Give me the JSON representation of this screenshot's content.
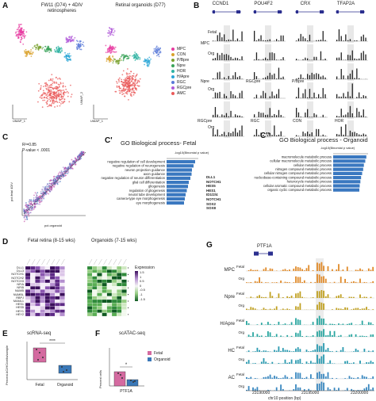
{
  "panels": {
    "A": {
      "letter": "A",
      "title_left_1": "FW11 (D74) + 4DIV",
      "title_left_2": "retinospheres",
      "title_right": "Retinal organoids (D77)",
      "umap1": "UMAP_1",
      "umap2": "UMAP_2",
      "legend": [
        {
          "label": "MPC",
          "color": "#e73aa0"
        },
        {
          "label": "CON",
          "color": "#d9a22b"
        },
        {
          "label": "P/Bpre",
          "color": "#7aa12f"
        },
        {
          "label": "Npre",
          "color": "#3aa35a"
        },
        {
          "label": "HOR",
          "color": "#2fb3a3"
        },
        {
          "label": "H/Apre",
          "color": "#2aa6d6"
        },
        {
          "label": "RGC",
          "color": "#5a79d8"
        },
        {
          "label": "RGCpre",
          "color": "#b05ad8"
        },
        {
          "label": "AMC",
          "color": "#ea5a5a"
        }
      ]
    },
    "B": {
      "letter": "B",
      "genes": [
        "CCND1",
        "POU4F2",
        "CRX",
        "TFAP2A"
      ],
      "rows": [
        {
          "label": "MPC"
        },
        {
          "label": "Npre"
        },
        {
          "label": "RGCpre"
        }
      ],
      "track_fetal": "Fetal",
      "track_org": "Org",
      "inner_labels": [
        "RGCpre",
        "P/Bpre",
        "RGC",
        "CON",
        "HOR"
      ]
    },
    "C": {
      "letter": "C",
      "r2": "R²=0.85",
      "pval": "P-value < .0001",
      "xlabel": "pct.organoid",
      "ylabel": "pct.fetal 4DIV"
    },
    "C1": {
      "letter": "C'",
      "title": "GO Biological process- Fetal",
      "axis": "-log10(Binomial p value)",
      "terms": [
        "negative regulation of cell development",
        "negative regulation of neurogenesis",
        "neuron projection guidance",
        "axon guidance",
        "negative regulation of neuron differentiation",
        "glial cell differentiation",
        "gliogenesis",
        "regulation of gliogenesis",
        "neural tube development",
        "camera-type eye morphogenesis",
        "eye morphogenesis"
      ],
      "values": [
        7.2,
        6.8,
        6.4,
        6.3,
        6.0,
        5.6,
        5.4,
        5.1,
        4.8,
        4.6,
        4.4
      ],
      "genes": [
        "DLL1",
        "NOTCH1",
        "HES5",
        "HES1",
        "ID1/2/4",
        "NOTCH1",
        "SOX2",
        "SOX8"
      ]
    },
    "C2": {
      "letter": "C''",
      "title": "GO Biological process - Organoid",
      "axis": "-log10(Binomial p value)",
      "terms": [
        "macromolecule metabolic process",
        "cellular macromolecule metabolic process",
        "cellular metabolic process",
        "nitrogen compound metabolic process",
        "cellular nitrogen compound metabolic process",
        "nucleobase-containing compound metabolic process",
        "heterocycle metabolic process",
        "cellular aromatic compound metabolic process",
        "organic cyclic compound metabolic process"
      ],
      "values": [
        9.5,
        9.2,
        8.8,
        8.6,
        8.3,
        8.0,
        7.8,
        7.6,
        7.5
      ]
    },
    "D": {
      "letter": "D",
      "title_fetal": "Fetal retina (8-15 wks)",
      "title_org": "Organoids (7-15 wks)",
      "genes": [
        "DLL1",
        "DLL3",
        "NOTCH1",
        "NOTCH2",
        "NOTCH3",
        "NFIA",
        "NFIB",
        "NUMB",
        "NUMBL",
        "RBPJ",
        "MAML1",
        "HES1",
        "HES5",
        "HEY1",
        "HEY2"
      ],
      "legend_title": "Expression",
      "legend_ticks": [
        "1.5",
        "1",
        "0.5",
        "0",
        "-0.5",
        "-1",
        "-1.5"
      ]
    },
    "E": {
      "letter": "E",
      "title": "scRNA-seq",
      "ylabel": "Percent AC/HC/cells/sample",
      "cats": [
        "Fetal",
        "Organoid"
      ],
      "sig": "****"
    },
    "F": {
      "letter": "F",
      "title": "scATAC-seq",
      "ylabel": "Percent cells",
      "xlabel": "PTF1A",
      "sig": "*",
      "legend": [
        {
          "label": "Fetal",
          "color": "#d46aa0"
        },
        {
          "label": "Organoid",
          "color": "#3a78b8"
        }
      ]
    },
    "G": {
      "letter": "G",
      "gene": "PTF1A",
      "groups": [
        {
          "label": "MPC",
          "color": "#e08a2a"
        },
        {
          "label": "Npre",
          "color": "#c0a020"
        },
        {
          "label": "H/Apre",
          "color": "#2aa6a0"
        },
        {
          "label": "HC",
          "color": "#2a9ab0"
        },
        {
          "label": "AC",
          "color": "#3a88c0"
        }
      ],
      "track_fetal": "Fetal",
      "track_org": "Org",
      "ticks": [
        "23190000",
        "23195000",
        "23200000"
      ],
      "xlabel": "chr10 position (bp)"
    }
  }
}
